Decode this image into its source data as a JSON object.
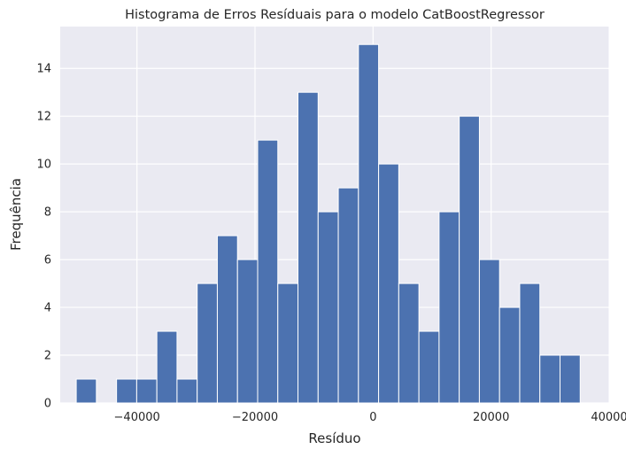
{
  "chart_data": {
    "type": "bar",
    "title": "Histograma de Erros Resíduais para o modelo CatBoostRegressor",
    "xlabel": "Resíduo",
    "ylabel": "Frequência",
    "xlim": [
      -53000,
      40000
    ],
    "ylim": [
      0,
      15.75
    ],
    "xticks": [
      -40000,
      -20000,
      0,
      20000,
      40000
    ],
    "xtick_labels": [
      "−40000",
      "−20000",
      "0",
      "20000",
      "40000"
    ],
    "yticks": [
      0,
      2,
      4,
      6,
      8,
      10,
      12,
      14
    ],
    "ytick_labels": [
      "0",
      "2",
      "4",
      "6",
      "8",
      "10",
      "12",
      "14"
    ],
    "bin_start": -50286,
    "bin_width": 3415,
    "values": [
      1,
      0,
      1,
      1,
      3,
      1,
      5,
      7,
      6,
      11,
      5,
      13,
      8,
      9,
      15,
      10,
      5,
      3,
      8,
      12,
      6,
      4,
      5,
      2,
      2
    ],
    "grid": true,
    "colors": {
      "bar": "#4c72b0",
      "background": "#eaeaf2",
      "grid": "#ffffff"
    }
  }
}
